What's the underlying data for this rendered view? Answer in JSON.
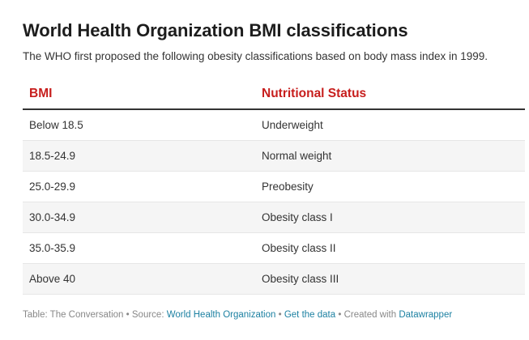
{
  "header": {
    "title": "World Health Organization BMI classifications",
    "subtitle": "The WHO first proposed the following obesity classifications based on body mass index in 1999."
  },
  "table": {
    "columns": [
      "BMI",
      "Nutritional Status"
    ],
    "rows": [
      [
        "Below 18.5",
        "Underweight"
      ],
      [
        "18.5-24.9",
        "Normal weight"
      ],
      [
        "25.0-29.9",
        "Preobesity"
      ],
      [
        "30.0-34.9",
        "Obesity class I"
      ],
      [
        "35.0-35.9",
        "Obesity class II"
      ],
      [
        "Above 40",
        "Obesity class III"
      ]
    ],
    "header_color": "#c71e1d",
    "stripe_color": "#f5f5f5"
  },
  "footer": {
    "table_label": "Table: The Conversation",
    "source_prefix": "Source:",
    "source_link": "World Health Organization",
    "get_data": "Get the data",
    "created_prefix": "Created with",
    "created_link": "Datawrapper",
    "separator": "•",
    "link_color": "#1d81a2"
  }
}
